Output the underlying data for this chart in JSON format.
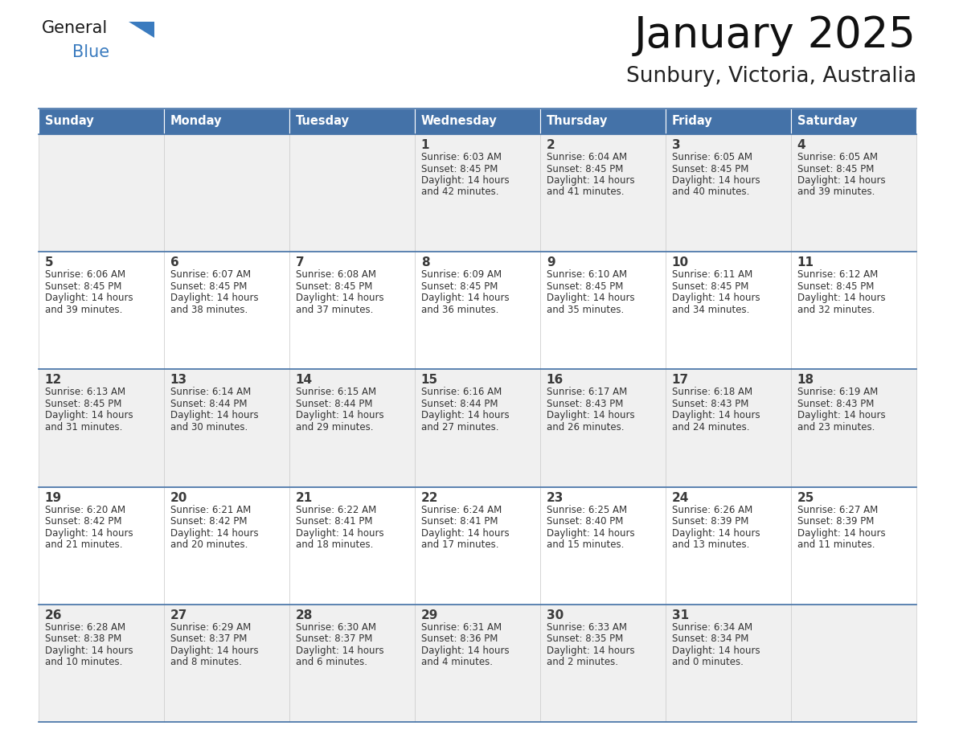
{
  "title": "January 2025",
  "subtitle": "Sunbury, Victoria, Australia",
  "days_of_week": [
    "Sunday",
    "Monday",
    "Tuesday",
    "Wednesday",
    "Thursday",
    "Friday",
    "Saturday"
  ],
  "header_bg_color": "#4472a8",
  "header_text_color": "#FFFFFF",
  "cell_bg_even": "#F0F0F0",
  "cell_bg_odd": "#FFFFFF",
  "cell_text_color": "#333333",
  "day_num_color": "#3a3a3a",
  "logo_black": "#1a1a1a",
  "logo_blue": "#3a7bbf",
  "border_color": "#4472a8",
  "thin_line_color": "#cccccc",
  "calendar_data": [
    [
      null,
      null,
      null,
      {
        "day": 1,
        "sunrise": "6:03 AM",
        "sunset": "8:45 PM",
        "daylight": "14 hours and 42 minutes."
      },
      {
        "day": 2,
        "sunrise": "6:04 AM",
        "sunset": "8:45 PM",
        "daylight": "14 hours and 41 minutes."
      },
      {
        "day": 3,
        "sunrise": "6:05 AM",
        "sunset": "8:45 PM",
        "daylight": "14 hours and 40 minutes."
      },
      {
        "day": 4,
        "sunrise": "6:05 AM",
        "sunset": "8:45 PM",
        "daylight": "14 hours and 39 minutes."
      }
    ],
    [
      {
        "day": 5,
        "sunrise": "6:06 AM",
        "sunset": "8:45 PM",
        "daylight": "14 hours and 39 minutes."
      },
      {
        "day": 6,
        "sunrise": "6:07 AM",
        "sunset": "8:45 PM",
        "daylight": "14 hours and 38 minutes."
      },
      {
        "day": 7,
        "sunrise": "6:08 AM",
        "sunset": "8:45 PM",
        "daylight": "14 hours and 37 minutes."
      },
      {
        "day": 8,
        "sunrise": "6:09 AM",
        "sunset": "8:45 PM",
        "daylight": "14 hours and 36 minutes."
      },
      {
        "day": 9,
        "sunrise": "6:10 AM",
        "sunset": "8:45 PM",
        "daylight": "14 hours and 35 minutes."
      },
      {
        "day": 10,
        "sunrise": "6:11 AM",
        "sunset": "8:45 PM",
        "daylight": "14 hours and 34 minutes."
      },
      {
        "day": 11,
        "sunrise": "6:12 AM",
        "sunset": "8:45 PM",
        "daylight": "14 hours and 32 minutes."
      }
    ],
    [
      {
        "day": 12,
        "sunrise": "6:13 AM",
        "sunset": "8:45 PM",
        "daylight": "14 hours and 31 minutes."
      },
      {
        "day": 13,
        "sunrise": "6:14 AM",
        "sunset": "8:44 PM",
        "daylight": "14 hours and 30 minutes."
      },
      {
        "day": 14,
        "sunrise": "6:15 AM",
        "sunset": "8:44 PM",
        "daylight": "14 hours and 29 minutes."
      },
      {
        "day": 15,
        "sunrise": "6:16 AM",
        "sunset": "8:44 PM",
        "daylight": "14 hours and 27 minutes."
      },
      {
        "day": 16,
        "sunrise": "6:17 AM",
        "sunset": "8:43 PM",
        "daylight": "14 hours and 26 minutes."
      },
      {
        "day": 17,
        "sunrise": "6:18 AM",
        "sunset": "8:43 PM",
        "daylight": "14 hours and 24 minutes."
      },
      {
        "day": 18,
        "sunrise": "6:19 AM",
        "sunset": "8:43 PM",
        "daylight": "14 hours and 23 minutes."
      }
    ],
    [
      {
        "day": 19,
        "sunrise": "6:20 AM",
        "sunset": "8:42 PM",
        "daylight": "14 hours and 21 minutes."
      },
      {
        "day": 20,
        "sunrise": "6:21 AM",
        "sunset": "8:42 PM",
        "daylight": "14 hours and 20 minutes."
      },
      {
        "day": 21,
        "sunrise": "6:22 AM",
        "sunset": "8:41 PM",
        "daylight": "14 hours and 18 minutes."
      },
      {
        "day": 22,
        "sunrise": "6:24 AM",
        "sunset": "8:41 PM",
        "daylight": "14 hours and 17 minutes."
      },
      {
        "day": 23,
        "sunrise": "6:25 AM",
        "sunset": "8:40 PM",
        "daylight": "14 hours and 15 minutes."
      },
      {
        "day": 24,
        "sunrise": "6:26 AM",
        "sunset": "8:39 PM",
        "daylight": "14 hours and 13 minutes."
      },
      {
        "day": 25,
        "sunrise": "6:27 AM",
        "sunset": "8:39 PM",
        "daylight": "14 hours and 11 minutes."
      }
    ],
    [
      {
        "day": 26,
        "sunrise": "6:28 AM",
        "sunset": "8:38 PM",
        "daylight": "14 hours and 10 minutes."
      },
      {
        "day": 27,
        "sunrise": "6:29 AM",
        "sunset": "8:37 PM",
        "daylight": "14 hours and 8 minutes."
      },
      {
        "day": 28,
        "sunrise": "6:30 AM",
        "sunset": "8:37 PM",
        "daylight": "14 hours and 6 minutes."
      },
      {
        "day": 29,
        "sunrise": "6:31 AM",
        "sunset": "8:36 PM",
        "daylight": "14 hours and 4 minutes."
      },
      {
        "day": 30,
        "sunrise": "6:33 AM",
        "sunset": "8:35 PM",
        "daylight": "14 hours and 2 minutes."
      },
      {
        "day": 31,
        "sunrise": "6:34 AM",
        "sunset": "8:34 PM",
        "daylight": "14 hours and 0 minutes."
      },
      null
    ]
  ]
}
